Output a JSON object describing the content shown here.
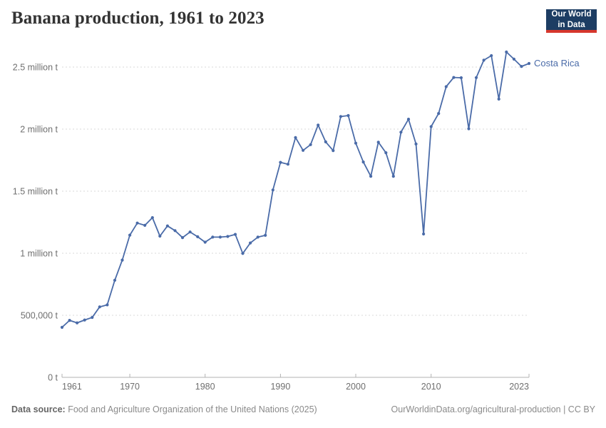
{
  "header": {
    "logo": {
      "line1": "Our World",
      "line2": "in Data"
    }
  },
  "chart_data": {
    "type": "line",
    "title": "Banana production, 1961 to 2023",
    "entity": "Costa Rica",
    "unit": "t",
    "line_color": "#4a6ba8",
    "grid": true,
    "legend_position": "end-of-line",
    "xlim": [
      1961,
      2023
    ],
    "ylim": [
      0,
      2500000
    ],
    "xticks": [
      1961,
      1970,
      1980,
      1990,
      2000,
      2010,
      2023
    ],
    "yticks": [
      {
        "value": 0,
        "label": "0 t"
      },
      {
        "value": 500000,
        "label": "500,000 t"
      },
      {
        "value": 1000000,
        "label": "1 million t"
      },
      {
        "value": 1500000,
        "label": "1.5 million t"
      },
      {
        "value": 2000000,
        "label": "2 million t"
      },
      {
        "value": 2500000,
        "label": "2.5 million t"
      }
    ],
    "x": [
      1961,
      1962,
      1963,
      1964,
      1965,
      1966,
      1967,
      1968,
      1969,
      1970,
      1971,
      1972,
      1973,
      1974,
      1975,
      1976,
      1977,
      1978,
      1979,
      1980,
      1981,
      1982,
      1983,
      1984,
      1985,
      1986,
      1987,
      1988,
      1989,
      1990,
      1991,
      1992,
      1993,
      1994,
      1995,
      1996,
      1997,
      1998,
      1999,
      2000,
      2001,
      2002,
      2003,
      2004,
      2005,
      2006,
      2007,
      2008,
      2009,
      2010,
      2011,
      2012,
      2013,
      2014,
      2015,
      2016,
      2017,
      2018,
      2019,
      2020,
      2021,
      2022,
      2023
    ],
    "values": [
      403000,
      459000,
      439000,
      462000,
      483000,
      568000,
      584000,
      782000,
      945000,
      1146000,
      1243000,
      1225000,
      1287000,
      1138000,
      1220000,
      1182000,
      1126000,
      1171000,
      1133000,
      1089000,
      1130000,
      1130000,
      1135000,
      1152000,
      998000,
      1083000,
      1130000,
      1144000,
      1510000,
      1732000,
      1717000,
      1932000,
      1829000,
      1875000,
      2033000,
      1897000,
      1827000,
      2101000,
      2109000,
      1887000,
      1735000,
      1620000,
      1895000,
      1810000,
      1620000,
      1975000,
      2080000,
      1880000,
      1155000,
      2020000,
      2126000,
      2342000,
      2416000,
      2414000,
      2003000,
      2415000,
      2555000,
      2592000,
      2242000,
      2621000,
      2564000,
      2505000,
      2529000
    ]
  },
  "footer": {
    "source_label": "Data source:",
    "source_text": " Food and Agriculture Organization of the United Nations (2025)",
    "credit": "OurWorldinData.org/agricultural-production | CC BY"
  }
}
